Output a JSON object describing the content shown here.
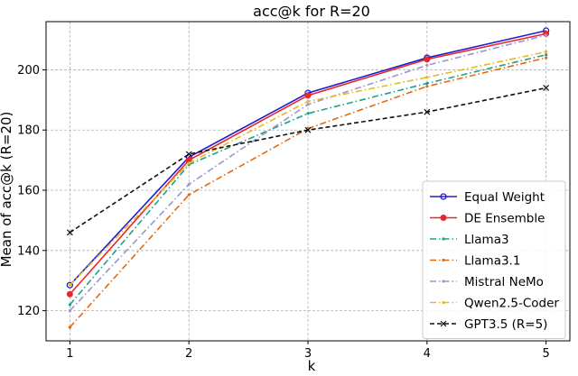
{
  "chart_data": {
    "type": "line",
    "title": "acc@k for R=20",
    "xlabel": "k",
    "ylabel": "Mean of acc@k (R=20)",
    "x": [
      1,
      2,
      3,
      4,
      5
    ],
    "xlim": [
      0.8,
      5.2
    ],
    "ylim": [
      110,
      216
    ],
    "xticks": [
      1,
      2,
      3,
      4,
      5
    ],
    "yticks": [
      120,
      140,
      160,
      180,
      200
    ],
    "grid": true,
    "legend_position": "lower right",
    "series": [
      {
        "name": "Equal Weight",
        "color": "#1f1fcc",
        "marker": "circle-open",
        "dash": "solid",
        "values": [
          128.5,
          171,
          192.3,
          204,
          213
        ]
      },
      {
        "name": "DE Ensemble",
        "color": "#e8272a",
        "marker": "circle",
        "dash": "solid",
        "values": [
          125.5,
          170,
          191.5,
          203.5,
          212
        ]
      },
      {
        "name": "Llama3",
        "color": "#20a08a",
        "marker": "dot",
        "dash": "dashdot",
        "values": [
          122,
          168.5,
          185.5,
          195.5,
          205
        ]
      },
      {
        "name": "Llama3.1",
        "color": "#e06a10",
        "marker": "dot",
        "dash": "dashdot",
        "values": [
          114.5,
          158.5,
          180.5,
          194.5,
          204
        ]
      },
      {
        "name": "Mistral NeMo",
        "color": "#9a94cf",
        "marker": "dot",
        "dash": "dashdot",
        "values": [
          120,
          162,
          188.5,
          201.5,
          211.5
        ]
      },
      {
        "name": "Qwen2.5-Coder",
        "color": "#e8b820",
        "marker": "dot",
        "dash": "dashdot",
        "values": [
          128.5,
          169,
          189.5,
          197.5,
          206
        ]
      },
      {
        "name": "GPT3.5 (R=5)",
        "color": "#111111",
        "marker": "x",
        "dash": "dashed",
        "values": [
          146,
          172,
          180,
          186,
          194
        ]
      }
    ]
  }
}
